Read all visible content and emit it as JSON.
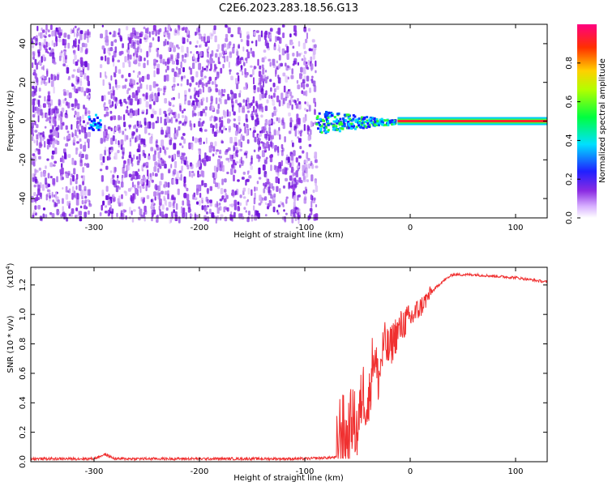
{
  "title": "C2E6.2023.283.18.56.G13",
  "colors": {
    "snr_line": "#f03030",
    "sgram_base": "#8a2be2",
    "axis": "#000000"
  },
  "chart_data": [
    {
      "type": "heatmap",
      "name": "spectrogram",
      "xlabel": "Height of straight line (km)",
      "ylabel": "Frequency (Hz)",
      "xlim": [
        -360,
        130
      ],
      "ylim": [
        -50,
        50
      ],
      "xticks": [
        -300,
        -200,
        -100,
        0,
        100
      ],
      "yticks": [
        -40,
        -20,
        0,
        20,
        40
      ],
      "colorbar": {
        "label": "Normalized spectral amplitude",
        "range": [
          0,
          1
        ],
        "ticks": [
          "0.0",
          "0.2",
          "0.4",
          "0.6",
          "0.8"
        ],
        "tick_values": [
          0.0,
          0.2,
          0.4,
          0.6,
          0.8
        ]
      },
      "features": {
        "noise_region_km": [
          -360,
          -90
        ],
        "noise_gap_km": [
          -305,
          -295
        ],
        "blob_at_km": -300,
        "blob_freq_hz": 0,
        "carrier_start_km": -90,
        "carrier_freq_hz": 0
      }
    },
    {
      "type": "line",
      "name": "snr",
      "xlabel": "Height of straight line (km)",
      "ylabel": "SNR (10 * v/v)",
      "yscale_label": "(x10",
      "yscale_exp": "4",
      "yscale_close": ")",
      "xlim": [
        -360,
        130
      ],
      "ylim": [
        0,
        1.32
      ],
      "xticks": [
        -300,
        -200,
        -100,
        0,
        100
      ],
      "yticks": [
        "0.0",
        "0.2",
        "0.4",
        "0.6",
        "0.8",
        "1.0",
        "1.2"
      ],
      "ytick_values": [
        0,
        0.2,
        0.4,
        0.6,
        0.8,
        1.0,
        1.2
      ],
      "series_keypoints": {
        "x": [
          -360,
          -300,
          -290,
          -280,
          -100,
          -70,
          -66,
          -60,
          -55,
          -50,
          -45,
          -40,
          -35,
          -30,
          -25,
          -20,
          -15,
          -10,
          -5,
          0,
          10,
          20,
          30,
          40,
          60,
          80,
          100,
          130
        ],
        "y": [
          0.02,
          0.02,
          0.05,
          0.02,
          0.02,
          0.03,
          0.25,
          0.15,
          0.3,
          0.2,
          0.5,
          0.35,
          0.75,
          0.55,
          0.8,
          0.75,
          0.85,
          0.9,
          0.95,
          0.97,
          1.05,
          1.15,
          1.22,
          1.27,
          1.27,
          1.26,
          1.25,
          1.22
        ]
      }
    }
  ]
}
